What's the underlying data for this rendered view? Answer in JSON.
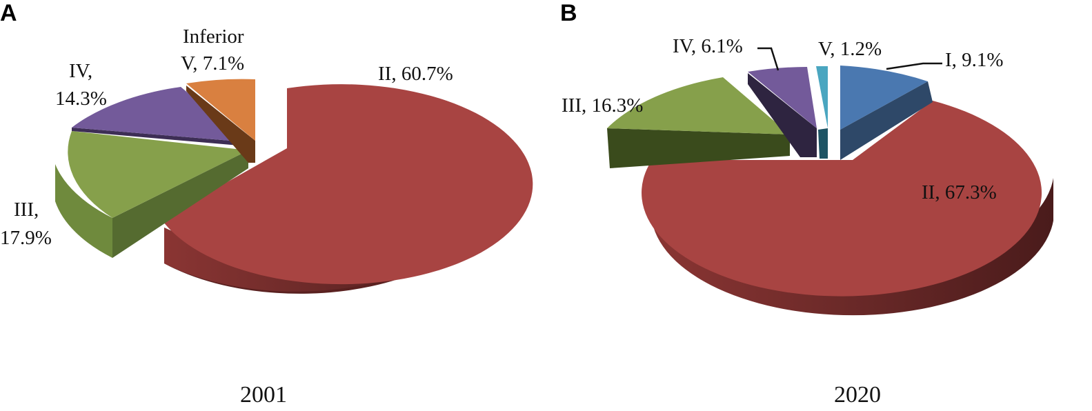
{
  "colors": {
    "I": "#4a78b0",
    "II": "#a84442",
    "III": "#86a04b",
    "IV": "#735a9a",
    "V_2001": "#d98040",
    "V_2020": "#4aa6c0"
  },
  "chart_data": [
    {
      "type": "pie",
      "panel": "A",
      "year": "2001",
      "slices": [
        {
          "key": "II",
          "value": 60.7,
          "label_lines": [
            "II, 60.7%"
          ]
        },
        {
          "key": "III",
          "value": 17.9,
          "label_lines": [
            "III,",
            "17.9%"
          ]
        },
        {
          "key": "IV",
          "value": 14.3,
          "label_lines": [
            "IV,",
            "14.3%"
          ]
        },
        {
          "key": "V",
          "value": 7.1,
          "label_lines": [
            "Inferior",
            "V, 7.1%"
          ]
        }
      ]
    },
    {
      "type": "pie",
      "panel": "B",
      "year": "2020",
      "slices": [
        {
          "key": "I",
          "value": 9.1,
          "label_lines": [
            "I, 9.1%"
          ]
        },
        {
          "key": "II",
          "value": 67.3,
          "label_lines": [
            "II, 67.3%"
          ]
        },
        {
          "key": "III",
          "value": 16.3,
          "label_lines": [
            "III, 16.3%"
          ]
        },
        {
          "key": "IV",
          "value": 6.1,
          "label_lines": [
            "IV, 6.1%"
          ]
        },
        {
          "key": "V",
          "value": 1.2,
          "label_lines": [
            "V, 1.2%"
          ]
        }
      ]
    }
  ]
}
